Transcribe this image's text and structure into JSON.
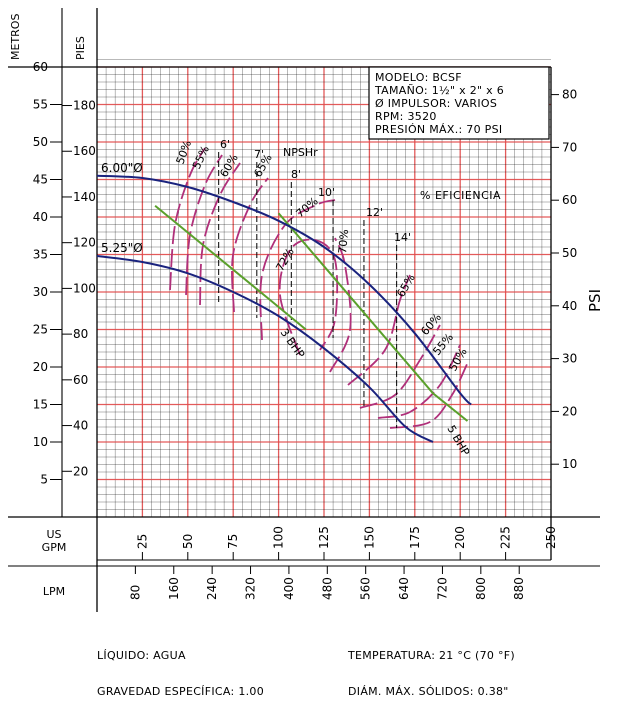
{
  "chart_data": {
    "type": "line",
    "axes": {
      "metros": {
        "title": "METROS",
        "ticks": [
          5,
          10,
          15,
          20,
          25,
          30,
          35,
          40,
          45,
          50,
          55,
          60
        ],
        "ylim": [
          0,
          62
        ]
      },
      "pies": {
        "title": "PIES",
        "ticks": [
          20,
          40,
          60,
          80,
          100,
          120,
          140,
          160,
          180
        ]
      },
      "psi": {
        "title": "PSI",
        "ticks": [
          10,
          20,
          30,
          40,
          50,
          60,
          70,
          80
        ]
      },
      "gpm": {
        "title": "US\nGPM",
        "ticks": [
          25,
          50,
          75,
          100,
          125,
          150,
          175,
          200,
          225,
          250
        ],
        "xlim": [
          0,
          250
        ]
      },
      "lpm": {
        "title": "LPM",
        "ticks": [
          80,
          160,
          240,
          320,
          400,
          480,
          560,
          640,
          720,
          800,
          880
        ]
      }
    },
    "info_box": [
      "MODELO: BCSF",
      "TAMAÑO: 1½\" x 2\" x 6",
      "Ø IMPULSOR: VARIOS",
      "RPM: 3520",
      "PRESIÓN MÁX.: 70 PSI"
    ],
    "series": [
      {
        "name": "6.00\"Ø",
        "color": "#1a237e",
        "x": [
          0,
          25,
          50,
          75,
          100,
          125,
          150,
          175,
          200,
          206
        ],
        "y": [
          45.5,
          45.2,
          44,
          42,
          39.5,
          36,
          31,
          24.5,
          16.5,
          15
        ]
      },
      {
        "name": "5.25\"Ø",
        "color": "#1a237e",
        "x": [
          0,
          25,
          50,
          75,
          100,
          125,
          150,
          170,
          185
        ],
        "y": [
          34.8,
          34,
          32.5,
          30,
          26.8,
          22.5,
          17.3,
          12,
          10
        ]
      }
    ],
    "bhp_lines": [
      {
        "label": "3 BHP",
        "x": [
          32,
          95,
          115
        ],
        "y": [
          41.5,
          29,
          25
        ]
      },
      {
        "label": "5 BHP",
        "x": [
          100,
          185,
          204
        ],
        "y": [
          40.5,
          16.5,
          12.8
        ]
      }
    ],
    "efficiency": {
      "title": "% EFICIENCIA",
      "labels": [
        "50%",
        "55%",
        "60%",
        "65%",
        "70%",
        "72%",
        "70%",
        "65%",
        "60%",
        "55%",
        "50%"
      ]
    },
    "npshr": {
      "title": "NPSHr",
      "labels": [
        "6'",
        "7'",
        "8'",
        "10'",
        "12'",
        "14'"
      ],
      "x": [
        67,
        88,
        107,
        130,
        147,
        165
      ]
    }
  },
  "footer": {
    "left": [
      "LÍQUIDO: AGUA",
      "GRAVEDAD ESPECÍFICA: 1.00"
    ],
    "right": [
      "TEMPERATURA: 21 °C (70 °F)",
      "DIÁM. MÁX. SÓLIDOS: 0.38\""
    ]
  }
}
